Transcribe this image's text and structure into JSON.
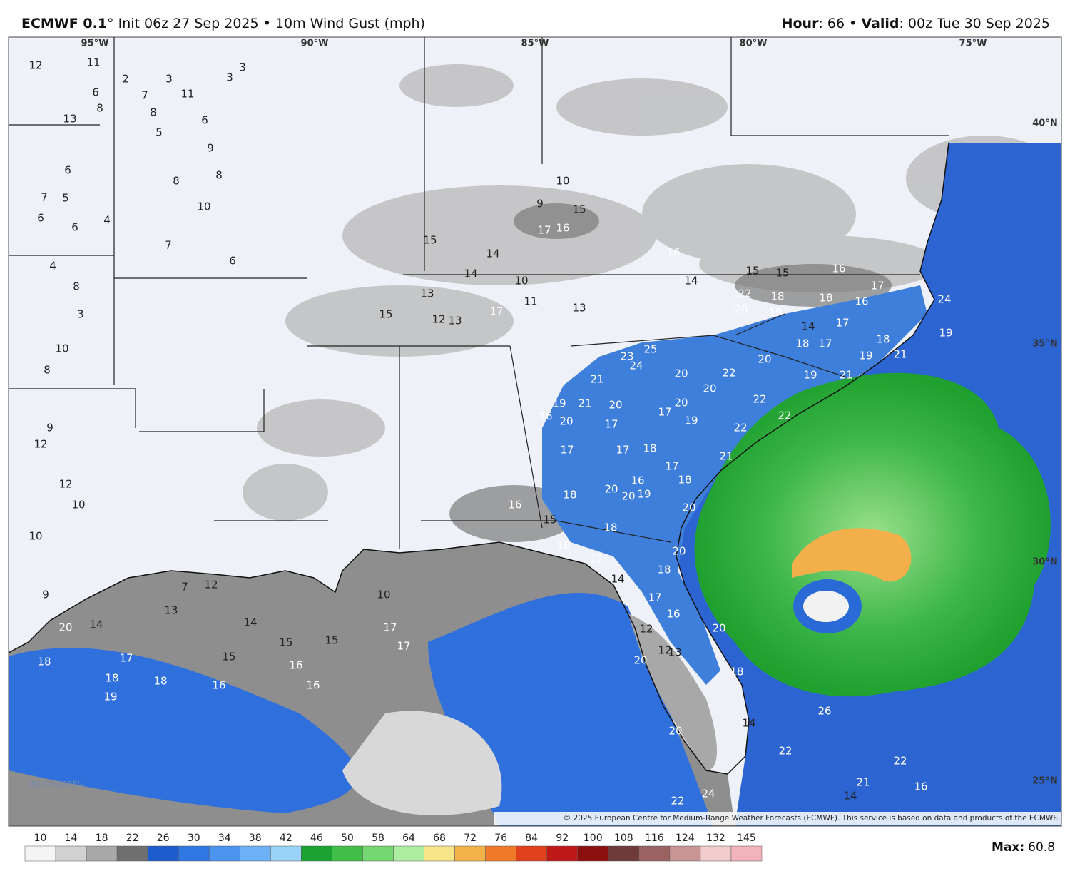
{
  "header": {
    "model": "ECMWF 0.1",
    "title": "° Init 06z 27 Sep 2025 • 10m Wind Gust (mph)",
    "hour_label": "Hour",
    "hour": ": 66 •",
    "valid_label": "Valid",
    "valid": ": 00z Tue 30 Sep 2025"
  },
  "map": {
    "longitudes": [
      "95°W",
      "90°W",
      "85°W",
      "80°W",
      "75°W"
    ],
    "latitudes": [
      "40°N",
      "35°N",
      "30°N",
      "25°N"
    ],
    "station_values": [
      12,
      11,
      2,
      3,
      3,
      3,
      6,
      7,
      11,
      8,
      8,
      6,
      5,
      9,
      13,
      6,
      7,
      5,
      6,
      6,
      4,
      8,
      8,
      10,
      7,
      6,
      4,
      8,
      3,
      10,
      8,
      9,
      12,
      12,
      10,
      10,
      9,
      14,
      13,
      17,
      18,
      19,
      18,
      15,
      16,
      14,
      15,
      15,
      16,
      16,
      17,
      17,
      10,
      7,
      12,
      15,
      14,
      17,
      16,
      15,
      10,
      9,
      14,
      13,
      15,
      12,
      13,
      17,
      13,
      11,
      10,
      16,
      14,
      22,
      20,
      18,
      19,
      18,
      16,
      17,
      14,
      18,
      17,
      20,
      19,
      21,
      22,
      22,
      19,
      21,
      19,
      18,
      17,
      16,
      15,
      15,
      24,
      25,
      24,
      23,
      21,
      20,
      22,
      20,
      21,
      20,
      20,
      19,
      20,
      16,
      17,
      17,
      19,
      22,
      17,
      17,
      18,
      17,
      16,
      18,
      20,
      20,
      19,
      18,
      18,
      21,
      20,
      16,
      15,
      16,
      17,
      14,
      17,
      16,
      18,
      20,
      12,
      12,
      13,
      20,
      20,
      18,
      14,
      20,
      22,
      24,
      22,
      26,
      22,
      21,
      16,
      14,
      20,
      18
    ],
    "copyright": "© 2025 European Centre for Medium-Range Weather Forecasts (ECMWF). This service is based on data and products of the ECMWF.",
    "logo": "WEATHERBELL"
  },
  "legend": {
    "levels": [
      10,
      14,
      18,
      22,
      26,
      30,
      34,
      38,
      42,
      46,
      50,
      58,
      64,
      68,
      72,
      76,
      84,
      92,
      100,
      108,
      116,
      124,
      132,
      145
    ],
    "colors": [
      "#f4f4f4",
      "#d2d2d2",
      "#a9a9a9",
      "#6f6f6f",
      "#1d5ccc",
      "#2f78e4",
      "#4b94ef",
      "#6cb1f5",
      "#9ad2f8",
      "#1aa332",
      "#41be48",
      "#74d872",
      "#aeeea0",
      "#f7e58a",
      "#f4b14a",
      "#ee7a2a",
      "#e0401c",
      "#bf1818",
      "#8c1010",
      "#6e3a3a",
      "#9c6262",
      "#c89494",
      "#f0cccc",
      "#f2b4bc"
    ],
    "max_label": "Max",
    "max_value": 60.8
  }
}
